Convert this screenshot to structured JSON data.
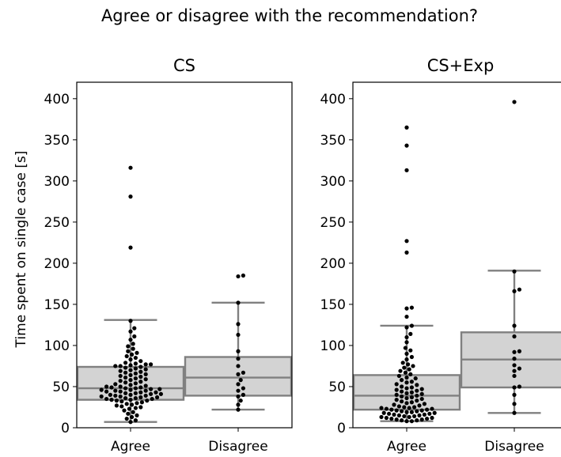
{
  "chart_data": {
    "type": "box_swarm",
    "title": "Agree or disagree with the recommendation?",
    "ylabel": "Time spent on single case [s]",
    "ylim": [
      0,
      420
    ],
    "yticks": [
      0,
      50,
      100,
      150,
      200,
      250,
      300,
      350,
      400
    ],
    "categories": [
      "Agree",
      "Disagree"
    ],
    "box_fill": "#d3d3d3",
    "box_stroke": "#808080",
    "point_color": "#000000",
    "panels": [
      {
        "title": "CS",
        "boxes": [
          {
            "category": "Agree",
            "whisker_low": 7,
            "q1": 34,
            "median": 48,
            "q3": 74,
            "whisker_high": 131,
            "points": [
              316,
              281,
              219,
              130,
              121,
              117,
              111,
              107,
              102,
              99,
              96,
              93,
              91,
              89,
              87,
              85,
              83,
              81,
              79,
              78,
              77,
              77,
              76,
              75,
              75,
              74,
              73,
              72,
              71,
              70,
              69,
              68,
              67,
              66,
              65,
              64,
              63,
              62,
              61,
              60,
              59,
              58,
              57,
              56,
              55,
              54,
              53,
              52,
              51,
              50,
              50,
              49,
              49,
              48,
              48,
              47,
              47,
              46,
              46,
              45,
              45,
              44,
              44,
              43,
              43,
              42,
              42,
              41,
              41,
              40,
              40,
              39,
              39,
              38,
              38,
              37,
              37,
              36,
              36,
              35,
              35,
              34,
              34,
              33,
              33,
              32,
              31,
              30,
              29,
              28,
              27,
              26,
              25,
              24,
              23,
              21,
              19,
              17,
              15,
              13,
              11,
              9,
              7
            ]
          },
          {
            "category": "Disagree",
            "whisker_low": 22,
            "q1": 39,
            "median": 61,
            "q3": 86,
            "whisker_high": 152,
            "points": [
              185,
              184,
              152,
              126,
              113,
              93,
              84,
              75,
              67,
              65,
              58,
              53,
              48,
              45,
              40,
              38,
              33,
              28,
              22
            ]
          }
        ]
      },
      {
        "title": "CS+Exp",
        "boxes": [
          {
            "category": "Agree",
            "whisker_low": 8,
            "q1": 22,
            "median": 39,
            "q3": 64,
            "whisker_high": 124,
            "points": [
              365,
              343,
              313,
              227,
              213,
              146,
              145,
              135,
              124,
              122,
              114,
              110,
              104,
              97,
              94,
              90,
              86,
              83,
              79,
              77,
              75,
              73,
              71,
              69,
              67,
              65,
              63,
              61,
              60,
              58,
              56,
              55,
              53,
              52,
              50,
              49,
              48,
              47,
              46,
              45,
              44,
              43,
              42,
              41,
              40,
              39,
              38,
              37,
              36,
              35,
              34,
              33,
              32,
              31,
              30,
              29,
              28,
              27,
              26,
              25,
              25,
              24,
              24,
              23,
              23,
              22,
              22,
              21,
              21,
              20,
              20,
              19,
              19,
              18,
              18,
              17,
              17,
              16,
              16,
              15,
              15,
              14,
              14,
              13,
              13,
              12,
              12,
              11,
              11,
              10,
              10,
              9,
              9,
              8,
              8
            ]
          },
          {
            "category": "Disagree",
            "whisker_low": 18,
            "q1": 49,
            "median": 83,
            "q3": 116,
            "whisker_high": 191,
            "points": [
              396,
              190,
              168,
              166,
              124,
              111,
              93,
              92,
              84,
              76,
              72,
              69,
              63,
              50,
              49,
              40,
              29,
              18
            ]
          }
        ]
      }
    ]
  }
}
